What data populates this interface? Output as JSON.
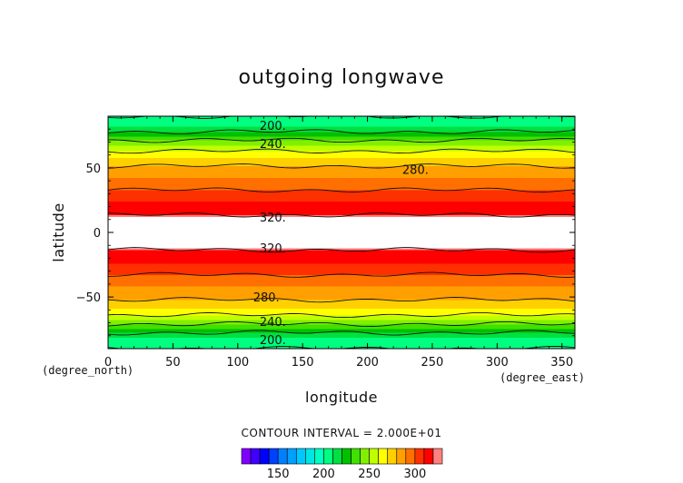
{
  "chart_data": {
    "type": "heatmap",
    "title": "outgoing longwave",
    "xlabel": "longitude",
    "ylabel": "latitude",
    "x_unit": "(degree_east)",
    "y_unit": "(degree_north)",
    "xlim": [
      0,
      360
    ],
    "ylim": [
      -90,
      90
    ],
    "x_ticks": [
      0,
      50,
      100,
      150,
      200,
      250,
      300,
      350
    ],
    "y_ticks": [
      -50,
      0,
      50
    ],
    "contour_interval_text": "CONTOUR INTERVAL = 2.000E+01",
    "contour_levels": [
      200,
      240,
      280,
      320
    ],
    "contour_labels": [
      {
        "text": "200.",
        "lon": 127,
        "lat": 83
      },
      {
        "text": "240.",
        "lon": 127,
        "lat": 69
      },
      {
        "text": "280.",
        "lon": 237,
        "lat": 49
      },
      {
        "text": "320.",
        "lon": 127,
        "lat": 12
      },
      {
        "text": "320.",
        "lon": 127,
        "lat": -12
      },
      {
        "text": "280.",
        "lon": 122,
        "lat": -50
      },
      {
        "text": "240.",
        "lon": 127,
        "lat": -69
      },
      {
        "text": "200.",
        "lon": 127,
        "lat": -83
      }
    ],
    "lat_profile": [
      [
        -90,
        200
      ],
      [
        -85,
        203
      ],
      [
        -80,
        213
      ],
      [
        -75,
        228
      ],
      [
        -70,
        243
      ],
      [
        -65,
        258
      ],
      [
        -60,
        268
      ],
      [
        -55,
        276
      ],
      [
        -50,
        283
      ],
      [
        -45,
        287
      ],
      [
        -40,
        291
      ],
      [
        -35,
        297
      ],
      [
        -30,
        304
      ],
      [
        -25,
        309
      ],
      [
        -20,
        313
      ],
      [
        -15,
        318
      ],
      [
        -12,
        322
      ],
      [
        -10,
        400
      ],
      [
        10,
        400
      ],
      [
        12,
        322
      ],
      [
        15,
        318
      ],
      [
        20,
        313
      ],
      [
        25,
        309
      ],
      [
        30,
        304
      ],
      [
        35,
        297
      ],
      [
        40,
        292
      ],
      [
        45,
        288
      ],
      [
        50,
        282
      ],
      [
        55,
        275
      ],
      [
        60,
        266
      ],
      [
        65,
        256
      ],
      [
        70,
        244
      ],
      [
        75,
        229
      ],
      [
        80,
        214
      ],
      [
        85,
        204
      ],
      [
        90,
        200
      ]
    ],
    "colorbar": {
      "ticks": [
        150,
        200,
        250,
        300
      ],
      "range": [
        110,
        330
      ],
      "step": 10,
      "colors": [
        "#7f00ff",
        "#4000ff",
        "#0000ff",
        "#0040ff",
        "#0080ff",
        "#00a0ff",
        "#00c8ff",
        "#00e5e5",
        "#00ffc0",
        "#00ff80",
        "#00e040",
        "#00c000",
        "#40e000",
        "#80f000",
        "#c0ff00",
        "#ffff00",
        "#ffd000",
        "#ffa000",
        "#ff7000",
        "#ff3000",
        "#ff0000",
        "#ff8080"
      ]
    }
  }
}
